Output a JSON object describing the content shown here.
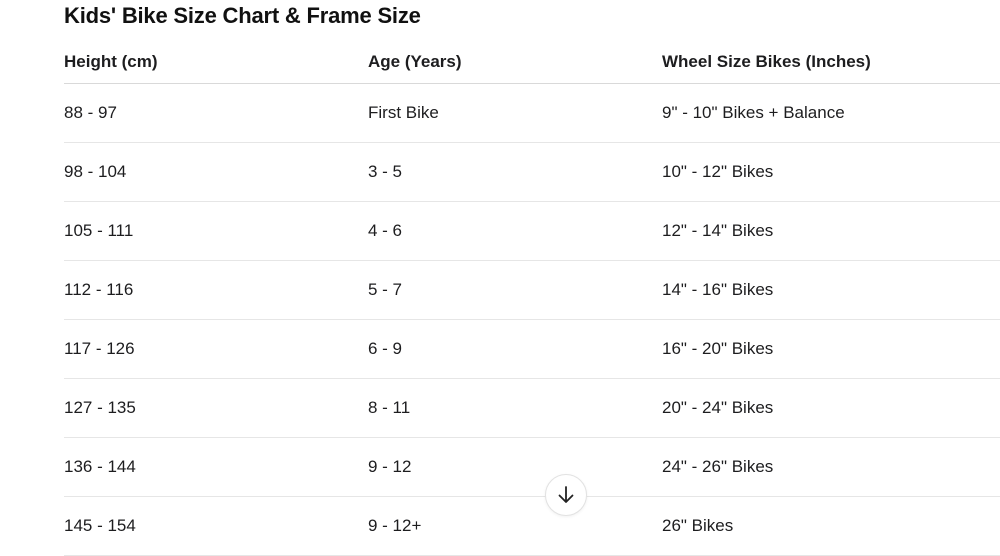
{
  "title": "Kids' Bike Size Chart & Frame Size",
  "table": {
    "headers": [
      "Height (cm)",
      "Age (Years)",
      "Wheel Size Bikes (Inches)"
    ],
    "rows": [
      [
        "88 - 97",
        "First Bike",
        "9\" - 10\" Bikes + Balance"
      ],
      [
        "98 - 104",
        "3 - 5",
        "10\" - 12\" Bikes"
      ],
      [
        "105 - 111",
        "4 - 6",
        "12\" - 14\" Bikes"
      ],
      [
        "112 - 116",
        "5 - 7",
        "14\" - 16\" Bikes"
      ],
      [
        "117 - 126",
        "6 - 9",
        "16\" - 20\" Bikes"
      ],
      [
        "127 - 135",
        "8 - 11",
        "20\" - 24\" Bikes"
      ],
      [
        "136 - 144",
        "9 - 12",
        "24\" - 26\" Bikes"
      ],
      [
        "145 - 154",
        "9 - 12+",
        "26\" Bikes"
      ]
    ]
  },
  "scroll_button": {
    "icon": "arrow-down-icon"
  }
}
